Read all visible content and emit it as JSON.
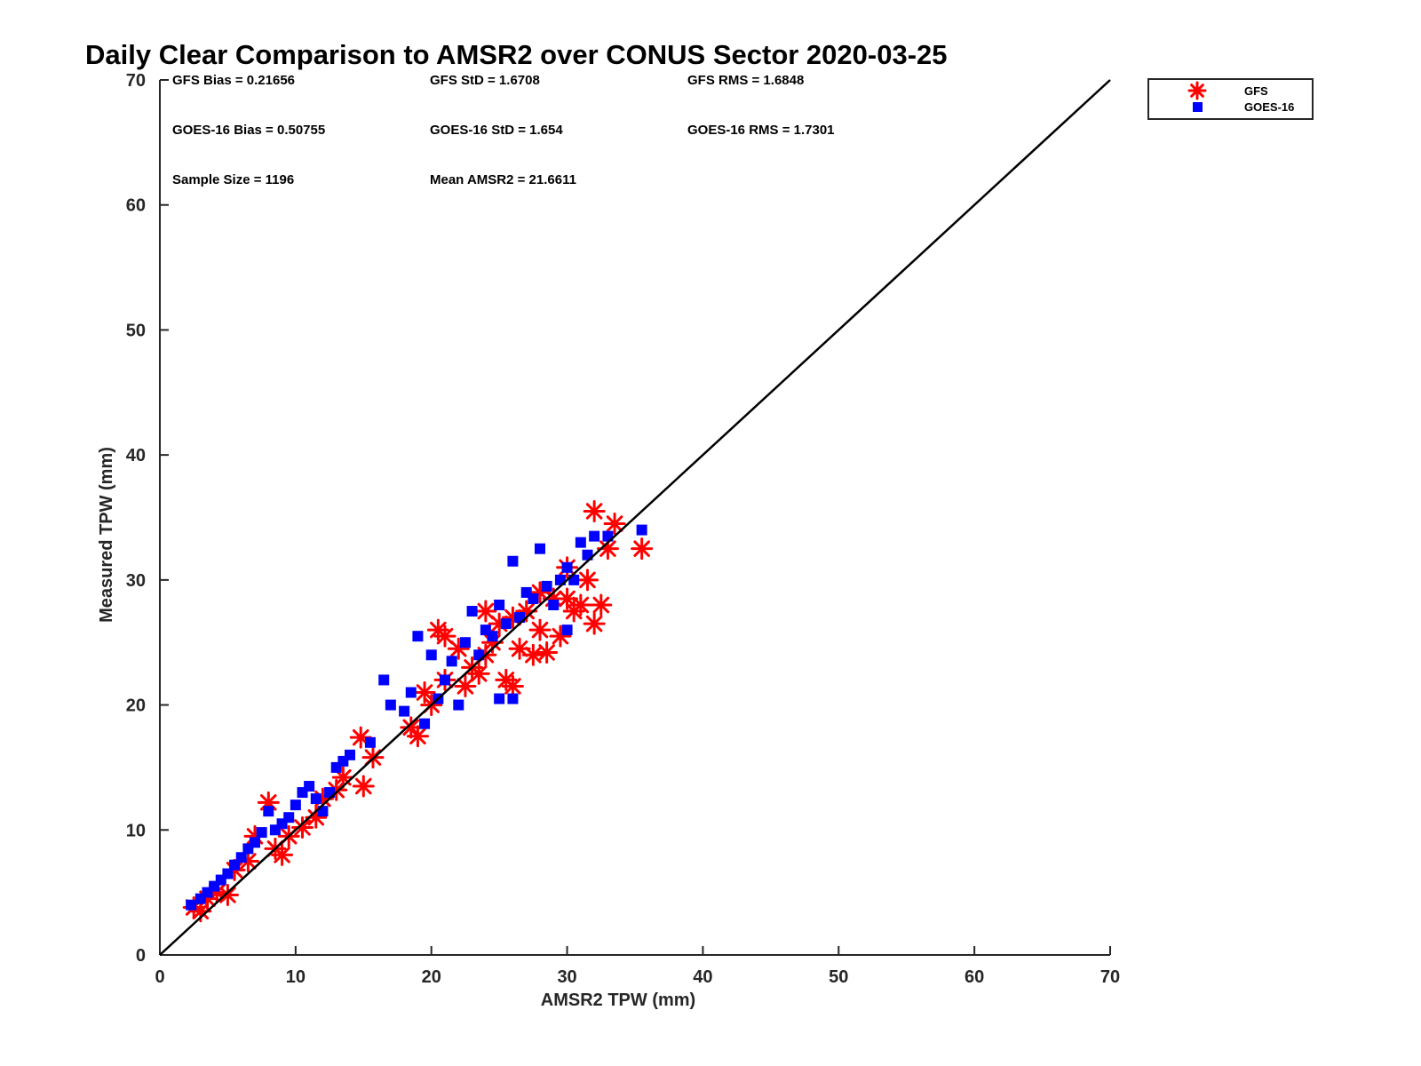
{
  "chart_data": {
    "type": "scatter",
    "title": "Daily Clear Comparison to AMSR2 over CONUS Sector 2020-03-25",
    "xlabel": "AMSR2 TPW (mm)",
    "ylabel": "Measured TPW (mm)",
    "xlim": [
      0,
      70
    ],
    "ylim": [
      0,
      70
    ],
    "xticks": [
      0,
      10,
      20,
      30,
      40,
      50,
      60,
      70
    ],
    "yticks": [
      0,
      10,
      20,
      30,
      40,
      50,
      60,
      70
    ],
    "grid": false,
    "legend_position": "outside top-right",
    "reference_line": {
      "x": [
        0,
        70
      ],
      "y": [
        0,
        70
      ]
    },
    "stats": [
      "GFS Bias = 0.21656",
      "GFS StD = 1.6708",
      "GFS RMS = 1.6848",
      "GOES-16 Bias = 0.50755",
      "GOES-16 StD = 1.654",
      "GOES-16 RMS = 1.7301",
      "Sample Size = 1196",
      "Mean AMSR2 = 21.6611"
    ],
    "series": [
      {
        "name": "GFS",
        "marker": "asterisk",
        "color": "#ff0000",
        "points": [
          [
            2.5,
            3.8
          ],
          [
            3,
            3.5
          ],
          [
            3.5,
            4.5
          ],
          [
            4.2,
            5
          ],
          [
            5,
            4.8
          ],
          [
            5.5,
            6.8
          ],
          [
            6.5,
            7.5
          ],
          [
            7,
            9.5
          ],
          [
            8,
            12.2
          ],
          [
            8.5,
            8.5
          ],
          [
            9,
            8
          ],
          [
            9.5,
            9.5
          ],
          [
            10.5,
            10.2
          ],
          [
            11.5,
            11
          ],
          [
            12,
            12.5
          ],
          [
            13,
            13.2
          ],
          [
            13.5,
            14.2
          ],
          [
            14.8,
            17.4
          ],
          [
            15,
            13.5
          ],
          [
            15.7,
            15.8
          ],
          [
            18.5,
            18.2
          ],
          [
            19,
            17.5
          ],
          [
            20.5,
            26
          ],
          [
            21,
            25.5
          ],
          [
            22,
            24.5
          ],
          [
            22.5,
            21.5
          ],
          [
            23,
            23
          ],
          [
            23.5,
            22.5
          ],
          [
            24,
            27.5
          ],
          [
            24.5,
            25
          ],
          [
            25,
            26.5
          ],
          [
            25.5,
            22
          ],
          [
            26,
            21.5
          ],
          [
            26.5,
            24.5
          ],
          [
            27,
            27.5
          ],
          [
            27.5,
            24
          ],
          [
            28,
            26
          ],
          [
            28.5,
            24.2
          ],
          [
            29,
            28.5
          ],
          [
            29.5,
            25.5
          ],
          [
            30,
            28.5
          ],
          [
            30.5,
            27.5
          ],
          [
            31,
            28
          ],
          [
            31.5,
            30
          ],
          [
            32,
            35.5
          ],
          [
            32,
            26.5
          ],
          [
            32.5,
            28
          ],
          [
            33,
            32.5
          ],
          [
            33.5,
            34.5
          ],
          [
            35.5,
            32.5
          ],
          [
            20,
            20
          ],
          [
            21,
            22
          ],
          [
            19.5,
            21
          ],
          [
            24,
            24
          ],
          [
            26,
            27
          ],
          [
            28,
            29
          ],
          [
            30,
            31
          ]
        ]
      },
      {
        "name": "GOES-16",
        "marker": "square",
        "color": "#0000ff",
        "points": [
          [
            2.3,
            4
          ],
          [
            3,
            4.5
          ],
          [
            3.5,
            5
          ],
          [
            4,
            5.5
          ],
          [
            4.5,
            6
          ],
          [
            5,
            6.5
          ],
          [
            5.5,
            7.2
          ],
          [
            6,
            7.8
          ],
          [
            6.5,
            8.5
          ],
          [
            7,
            9
          ],
          [
            7.5,
            9.8
          ],
          [
            8,
            11.5
          ],
          [
            8.5,
            10
          ],
          [
            9,
            10.5
          ],
          [
            9.5,
            11
          ],
          [
            10,
            12
          ],
          [
            10.5,
            13
          ],
          [
            11,
            13.5
          ],
          [
            11.5,
            12.5
          ],
          [
            12,
            11.5
          ],
          [
            12.5,
            13
          ],
          [
            13,
            15
          ],
          [
            13.5,
            15.5
          ],
          [
            14,
            16
          ],
          [
            15.5,
            17
          ],
          [
            16.5,
            22
          ],
          [
            17,
            20
          ],
          [
            18,
            19.5
          ],
          [
            18.5,
            21
          ],
          [
            19,
            25.5
          ],
          [
            19.5,
            18.5
          ],
          [
            20,
            24
          ],
          [
            20.5,
            20.5
          ],
          [
            21,
            22
          ],
          [
            21.5,
            23.5
          ],
          [
            22,
            20
          ],
          [
            22.5,
            25
          ],
          [
            23,
            27.5
          ],
          [
            23.5,
            24
          ],
          [
            24,
            26
          ],
          [
            24.5,
            25.5
          ],
          [
            25,
            28
          ],
          [
            25.5,
            26.5
          ],
          [
            26,
            31.5
          ],
          [
            26.5,
            27
          ],
          [
            27,
            29
          ],
          [
            27.5,
            28.5
          ],
          [
            28,
            32.5
          ],
          [
            28.5,
            29.5
          ],
          [
            29,
            28
          ],
          [
            29.5,
            30
          ],
          [
            30,
            31
          ],
          [
            30.5,
            30
          ],
          [
            31,
            33
          ],
          [
            31.5,
            32
          ],
          [
            32,
            33.5
          ],
          [
            33,
            33.5
          ],
          [
            35.5,
            34
          ],
          [
            25,
            20.5
          ],
          [
            26,
            20.5
          ],
          [
            30,
            26
          ]
        ]
      }
    ]
  }
}
